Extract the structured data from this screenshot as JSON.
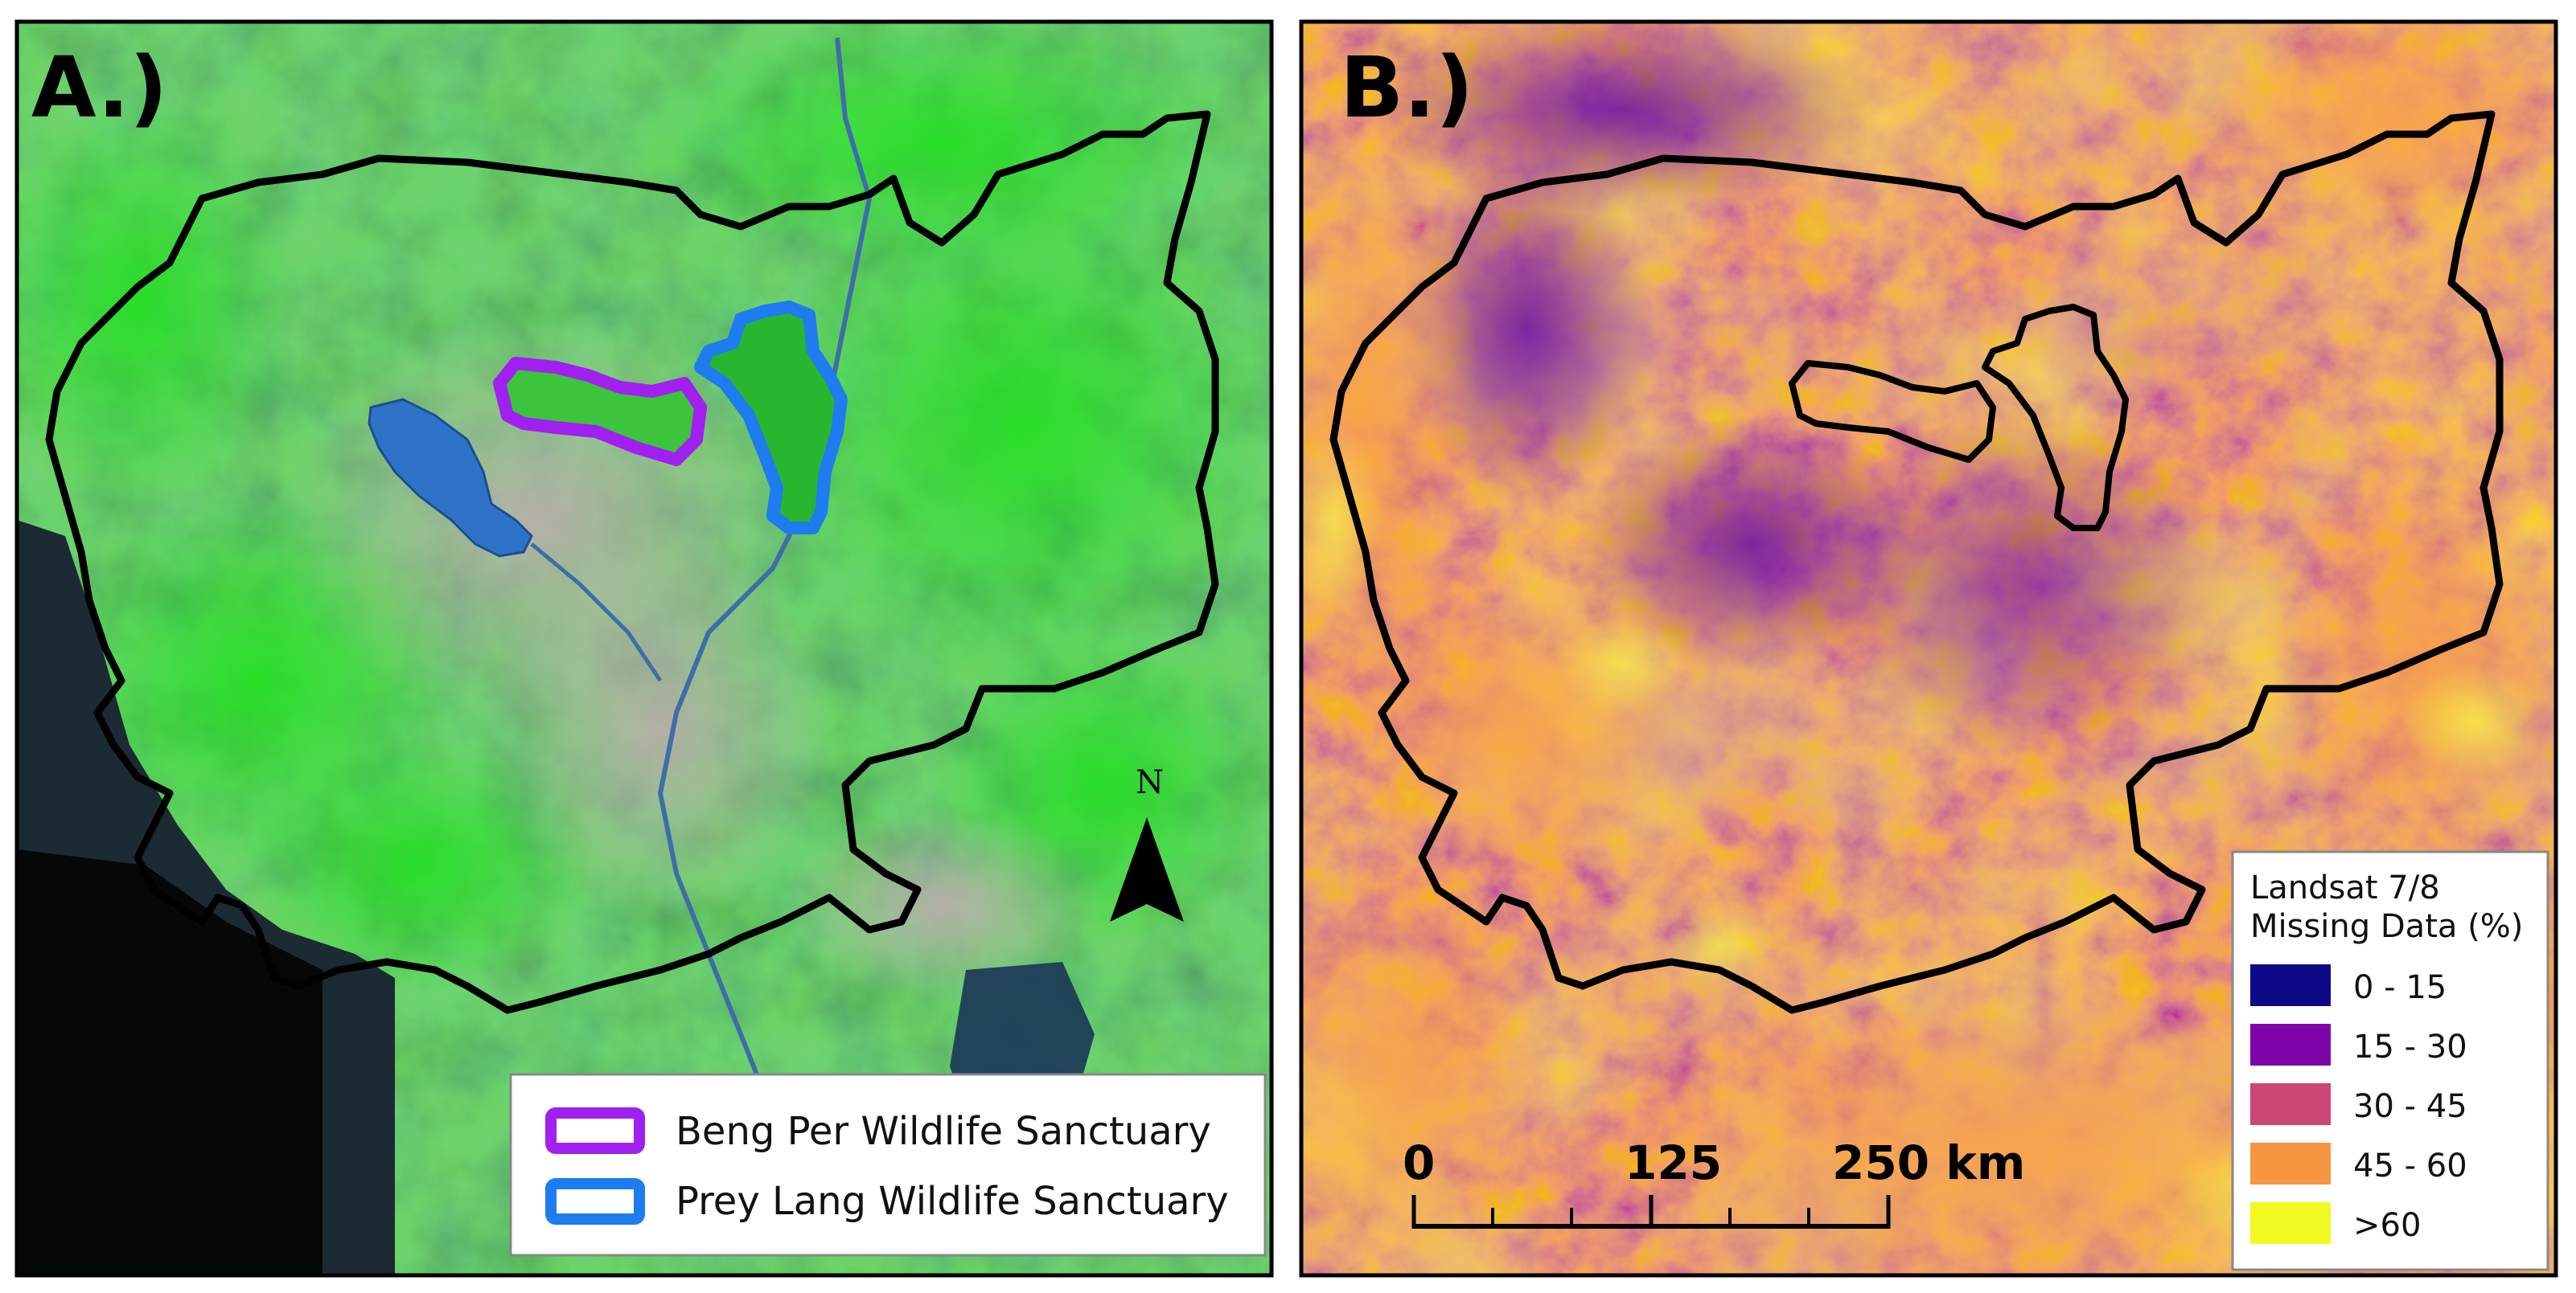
{
  "panels": {
    "a": {
      "label": "A.)",
      "legend": {
        "items": [
          {
            "label": "Beng Per Wildlife Sanctuary",
            "color": "#a020f0"
          },
          {
            "label": "Prey Lang Wildlife Sanctuary",
            "color": "#1e7cf0"
          }
        ]
      },
      "north_arrow": {
        "label": "N"
      }
    },
    "b": {
      "label": "B.)",
      "legend": {
        "title_line1": "Landsat 7/8",
        "title_line2": "Missing Data (%)",
        "classes": [
          {
            "label": "0 - 15",
            "color": "#0d0887"
          },
          {
            "label": "15 - 30",
            "color": "#7e03a8"
          },
          {
            "label": "30 - 45",
            "color": "#cc4778"
          },
          {
            "label": "45 - 60",
            "color": "#f89540"
          },
          {
            "label": ">60",
            "color": "#f0f921"
          }
        ]
      },
      "scale_bar": {
        "tick_0": "0",
        "tick_mid": "125",
        "tick_end": "250 km"
      }
    }
  },
  "colors": {
    "imagery_base": "#6aa84f",
    "forest_green": "#27d32a",
    "lake_blue": "#2f73c9",
    "sea_dark": "#16202b",
    "missing_base": "#c94a86",
    "outline": "#000000"
  }
}
